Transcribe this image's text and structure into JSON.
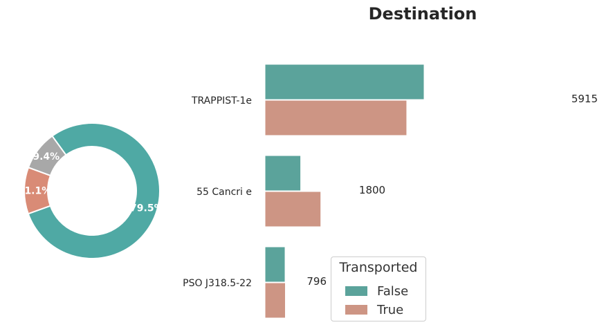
{
  "chart_data": [
    {
      "type": "pie",
      "style": "donut",
      "labels": [
        "",
        "",
        ""
      ],
      "values": [
        79.5,
        11.1,
        9.4
      ],
      "percent_labels": [
        "79.5%",
        "11.1%",
        "9.4%"
      ],
      "colors": [
        "#4fa9a4",
        "#d98b76",
        "#a8a8a8"
      ]
    },
    {
      "type": "bar",
      "orientation": "horizontal",
      "title": "Destination",
      "categories": [
        "TRAPPIST-1e",
        "55 Cancri e",
        "PSO J318.5-22"
      ],
      "series": [
        {
          "name": "False",
          "values": [
            3128,
            702,
            395
          ],
          "color": "#5ba39b"
        },
        {
          "name": "True",
          "values": [
            2787,
            1098,
            401
          ],
          "color": "#cd9584"
        }
      ],
      "totals": [
        "5915",
        "1800",
        "796"
      ],
      "legend": {
        "title": "Transported",
        "position": "lower-center"
      },
      "grid": false
    }
  ]
}
